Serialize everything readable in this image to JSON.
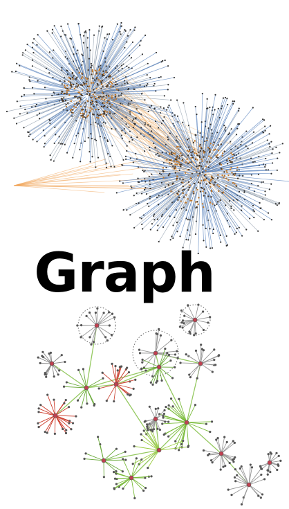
{
  "title": "Graph"
}
